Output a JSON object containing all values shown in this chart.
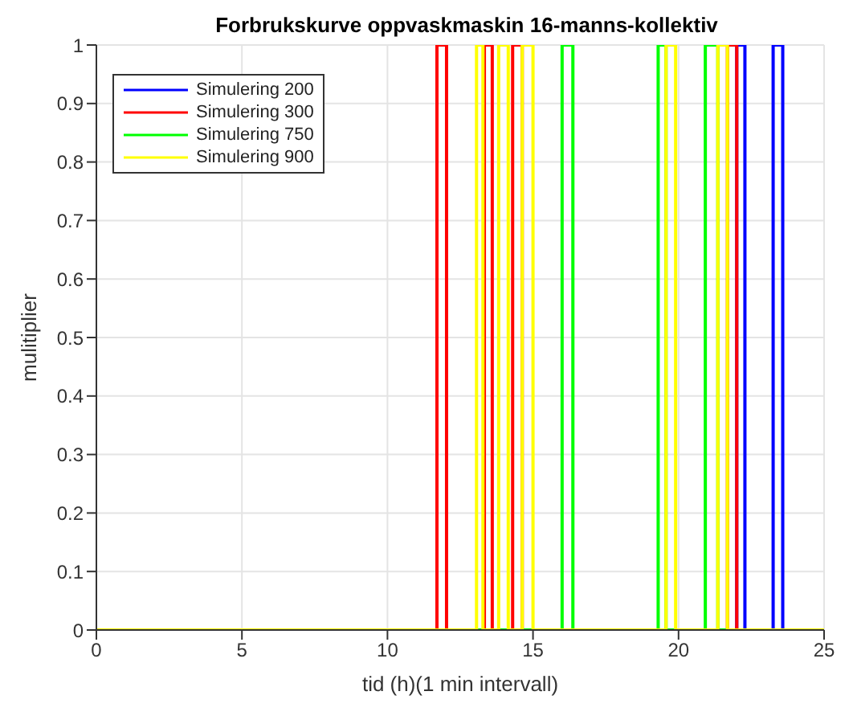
{
  "chart_data": {
    "type": "line",
    "title": "Forbrukskurve oppvaskmaskin 16-manns-kollektiv",
    "xlabel": "tid (h)(1 min intervall)",
    "ylabel": "mulitiplier",
    "xlim": [
      0,
      25
    ],
    "xticks": [
      0,
      5,
      10,
      15,
      20,
      25
    ],
    "ylim": [
      0,
      1
    ],
    "yticks": [
      0,
      0.1,
      0.2,
      0.3,
      0.4,
      0.5,
      0.6,
      0.7,
      0.8,
      0.9,
      1
    ],
    "grid": true,
    "legend": "top left",
    "series": [
      {
        "name": "Simulering 200",
        "color": "#0000ff",
        "x": [
          0,
          22.0,
          22.0,
          22.28,
          22.28,
          23.25,
          23.25,
          23.58,
          23.58,
          25
        ],
        "values": [
          0,
          0,
          1,
          1,
          0,
          0,
          1,
          1,
          0,
          0
        ]
      },
      {
        "name": "Simulering 300",
        "color": "#ff0000",
        "x": [
          0,
          11.7,
          11.7,
          12.03,
          12.03,
          13.33,
          13.33,
          13.6,
          13.6,
          14.3,
          14.3,
          14.63,
          14.63,
          21.68,
          21.68,
          22.0,
          22.0,
          25
        ],
        "values": [
          0,
          0,
          1,
          1,
          0,
          0,
          1,
          1,
          0,
          0,
          1,
          1,
          0,
          0,
          1,
          1,
          0,
          0
        ]
      },
      {
        "name": "Simulering 750",
        "color": "#00ff00",
        "x": [
          0,
          16.0,
          16.0,
          16.37,
          16.37,
          19.3,
          19.3,
          19.57,
          19.57,
          20.92,
          20.92,
          21.35,
          21.35,
          25
        ],
        "values": [
          0,
          0,
          1,
          1,
          0,
          0,
          1,
          1,
          0,
          0,
          1,
          1,
          0,
          0
        ]
      },
      {
        "name": "Simulering 900",
        "color": "#ffff00",
        "x": [
          0,
          13.06,
          13.06,
          13.28,
          13.28,
          13.82,
          13.82,
          14.15,
          14.15,
          14.63,
          14.63,
          15.0,
          15.0,
          19.57,
          19.57,
          19.9,
          19.9,
          21.35,
          21.35,
          21.68,
          21.68,
          25
        ],
        "values": [
          0,
          0,
          1,
          1,
          0,
          0,
          1,
          1,
          0,
          0,
          1,
          1,
          0,
          0,
          1,
          1,
          0,
          0,
          1,
          1,
          0,
          0
        ]
      }
    ]
  }
}
